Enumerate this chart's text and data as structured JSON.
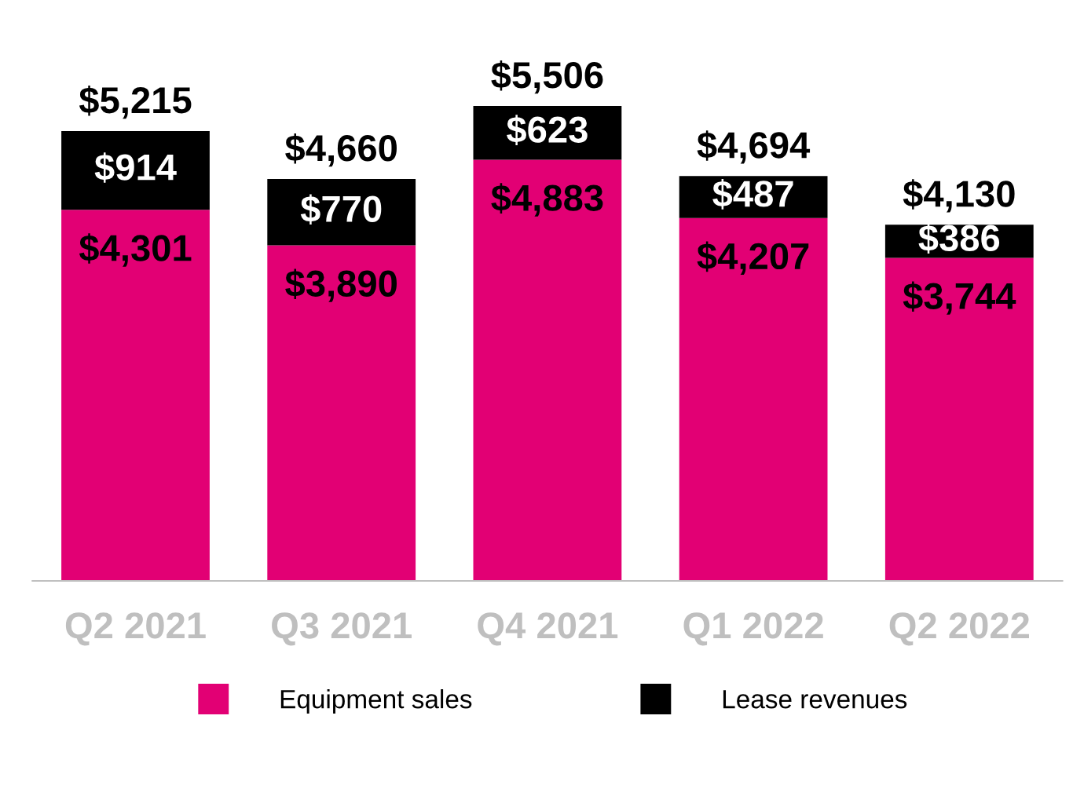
{
  "chart_data": {
    "type": "bar",
    "stacked": true,
    "categories": [
      "Q2 2021",
      "Q3 2021",
      "Q4 2021",
      "Q1 2022",
      "Q2 2022"
    ],
    "series": [
      {
        "name": "Equipment sales",
        "color": "#e20074",
        "values": [
          4301,
          3890,
          4883,
          4207,
          3744
        ],
        "value_labels": [
          "$4,301",
          "$3,890",
          "$4,883",
          "$4,207",
          "$3,744"
        ]
      },
      {
        "name": "Lease revenues",
        "color": "#000000",
        "values": [
          914,
          770,
          623,
          487,
          386
        ],
        "value_labels": [
          "$914",
          "$770",
          "$623",
          "$487",
          "$386"
        ]
      }
    ],
    "totals": [
      "$5,215",
      "$4,660",
      "$5,506",
      "$4,694",
      "$4,130"
    ],
    "tick_labels": "x",
    "grid": false,
    "legend": "bottom"
  }
}
